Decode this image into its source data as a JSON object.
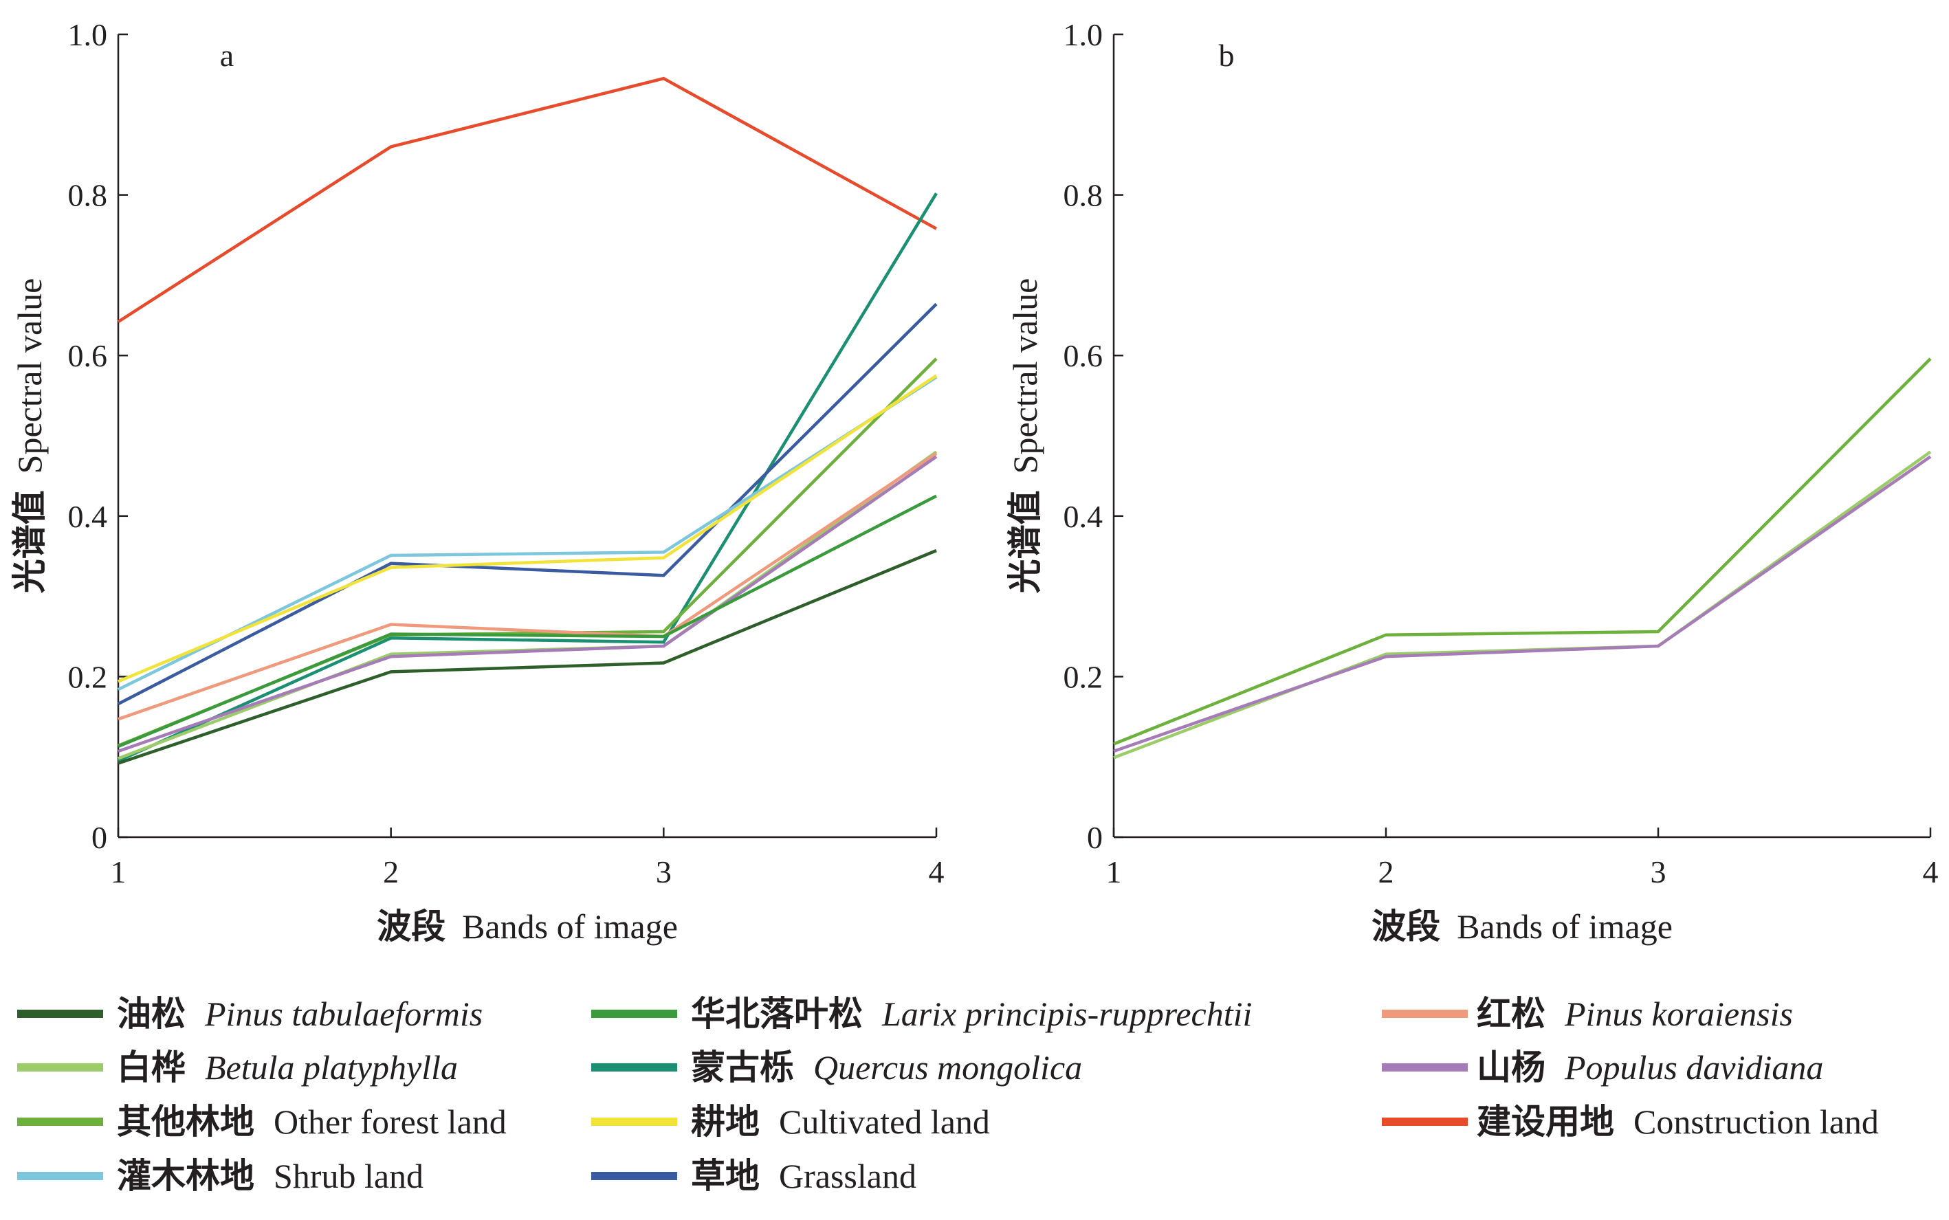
{
  "chart_data": [
    {
      "type": "line",
      "panel_label": "a",
      "xlabel_cn": "波段",
      "xlabel_en": "Bands of image",
      "ylabel_cn": "光谱值",
      "ylabel_en": "Spectral value",
      "x": [
        1,
        2,
        3,
        4
      ],
      "xlim": [
        1,
        4
      ],
      "ylim": [
        0,
        1.0
      ],
      "x_ticks": [
        "1",
        "2",
        "3",
        "4"
      ],
      "y_ticks": [
        "0",
        "0.2",
        "0.4",
        "0.6",
        "0.8",
        "1.0"
      ],
      "grid": false,
      "series": [
        {
          "key": "construction",
          "values": [
            0.642,
            0.86,
            0.945,
            0.758
          ]
        },
        {
          "key": "quercus",
          "values": [
            0.095,
            0.248,
            0.243,
            0.802
          ]
        },
        {
          "key": "grassland",
          "values": [
            0.166,
            0.341,
            0.326,
            0.664
          ]
        },
        {
          "key": "otherforest",
          "values": [
            0.114,
            0.252,
            0.256,
            0.596
          ]
        },
        {
          "key": "shrub",
          "values": [
            0.184,
            0.351,
            0.355,
            0.573
          ]
        },
        {
          "key": "cultivated",
          "values": [
            0.194,
            0.336,
            0.348,
            0.575
          ]
        },
        {
          "key": "betula",
          "values": [
            0.098,
            0.228,
            0.238,
            0.48
          ]
        },
        {
          "key": "koraiensis",
          "values": [
            0.147,
            0.265,
            0.25,
            0.478
          ]
        },
        {
          "key": "populus",
          "values": [
            0.107,
            0.225,
            0.238,
            0.474
          ]
        },
        {
          "key": "larix",
          "values": [
            0.113,
            0.253,
            0.25,
            0.425
          ]
        },
        {
          "key": "tabulaeformis",
          "values": [
            0.092,
            0.206,
            0.217,
            0.357
          ]
        }
      ]
    },
    {
      "type": "line",
      "panel_label": "b",
      "xlabel_cn": "波段",
      "xlabel_en": "Bands of image",
      "ylabel_cn": "光谱值",
      "ylabel_en": "Spectral value",
      "x": [
        1,
        2,
        3,
        4
      ],
      "xlim": [
        1,
        4
      ],
      "ylim": [
        0,
        1.0
      ],
      "x_ticks": [
        "1",
        "2",
        "3",
        "4"
      ],
      "y_ticks": [
        "0",
        "0.2",
        "0.4",
        "0.6",
        "0.8",
        "1.0"
      ],
      "grid": false,
      "series": [
        {
          "key": "otherforest",
          "values": [
            0.116,
            0.252,
            0.256,
            0.596
          ]
        },
        {
          "key": "betula",
          "values": [
            0.099,
            0.228,
            0.238,
            0.48
          ]
        },
        {
          "key": "populus",
          "values": [
            0.107,
            0.225,
            0.238,
            0.474
          ]
        }
      ]
    }
  ],
  "legend": {
    "placement": "bottom",
    "items": [
      {
        "key": "tabulaeformis",
        "cn": "油松",
        "en": "Pinus tabulaeformis",
        "italic": true,
        "color": "#2e5e2a"
      },
      {
        "key": "larix",
        "cn": "华北落叶松",
        "en": "Larix principis-rupprechtii",
        "italic": true,
        "color": "#3a9a3c"
      },
      {
        "key": "koraiensis",
        "cn": "红松",
        "en": "Pinus koraiensis",
        "italic": true,
        "color": "#f09a7d"
      },
      {
        "key": "betula",
        "cn": "白桦",
        "en": "Betula platyphylla",
        "italic": true,
        "color": "#9ccc6a"
      },
      {
        "key": "quercus",
        "cn": "蒙古栎",
        "en": "Quercus mongolica",
        "italic": true,
        "color": "#1a8f72"
      },
      {
        "key": "populus",
        "cn": "山杨",
        "en": "Populus davidiana",
        "italic": true,
        "color": "#a57bb8"
      },
      {
        "key": "otherforest",
        "cn": "其他林地",
        "en": "Other forest land",
        "italic": false,
        "color": "#6cb13c"
      },
      {
        "key": "cultivated",
        "cn": "耕地",
        "en": "Cultivated land",
        "italic": false,
        "color": "#f2e33a"
      },
      {
        "key": "construction",
        "cn": "建设用地",
        "en": "Construction land",
        "italic": false,
        "color": "#e84a2c"
      },
      {
        "key": "shrub",
        "cn": "灌木林地",
        "en": "Shrub land",
        "italic": false,
        "color": "#7cc6de"
      },
      {
        "key": "grassland",
        "cn": "草地",
        "en": "Grassland",
        "italic": false,
        "color": "#3a5ba0"
      }
    ]
  }
}
